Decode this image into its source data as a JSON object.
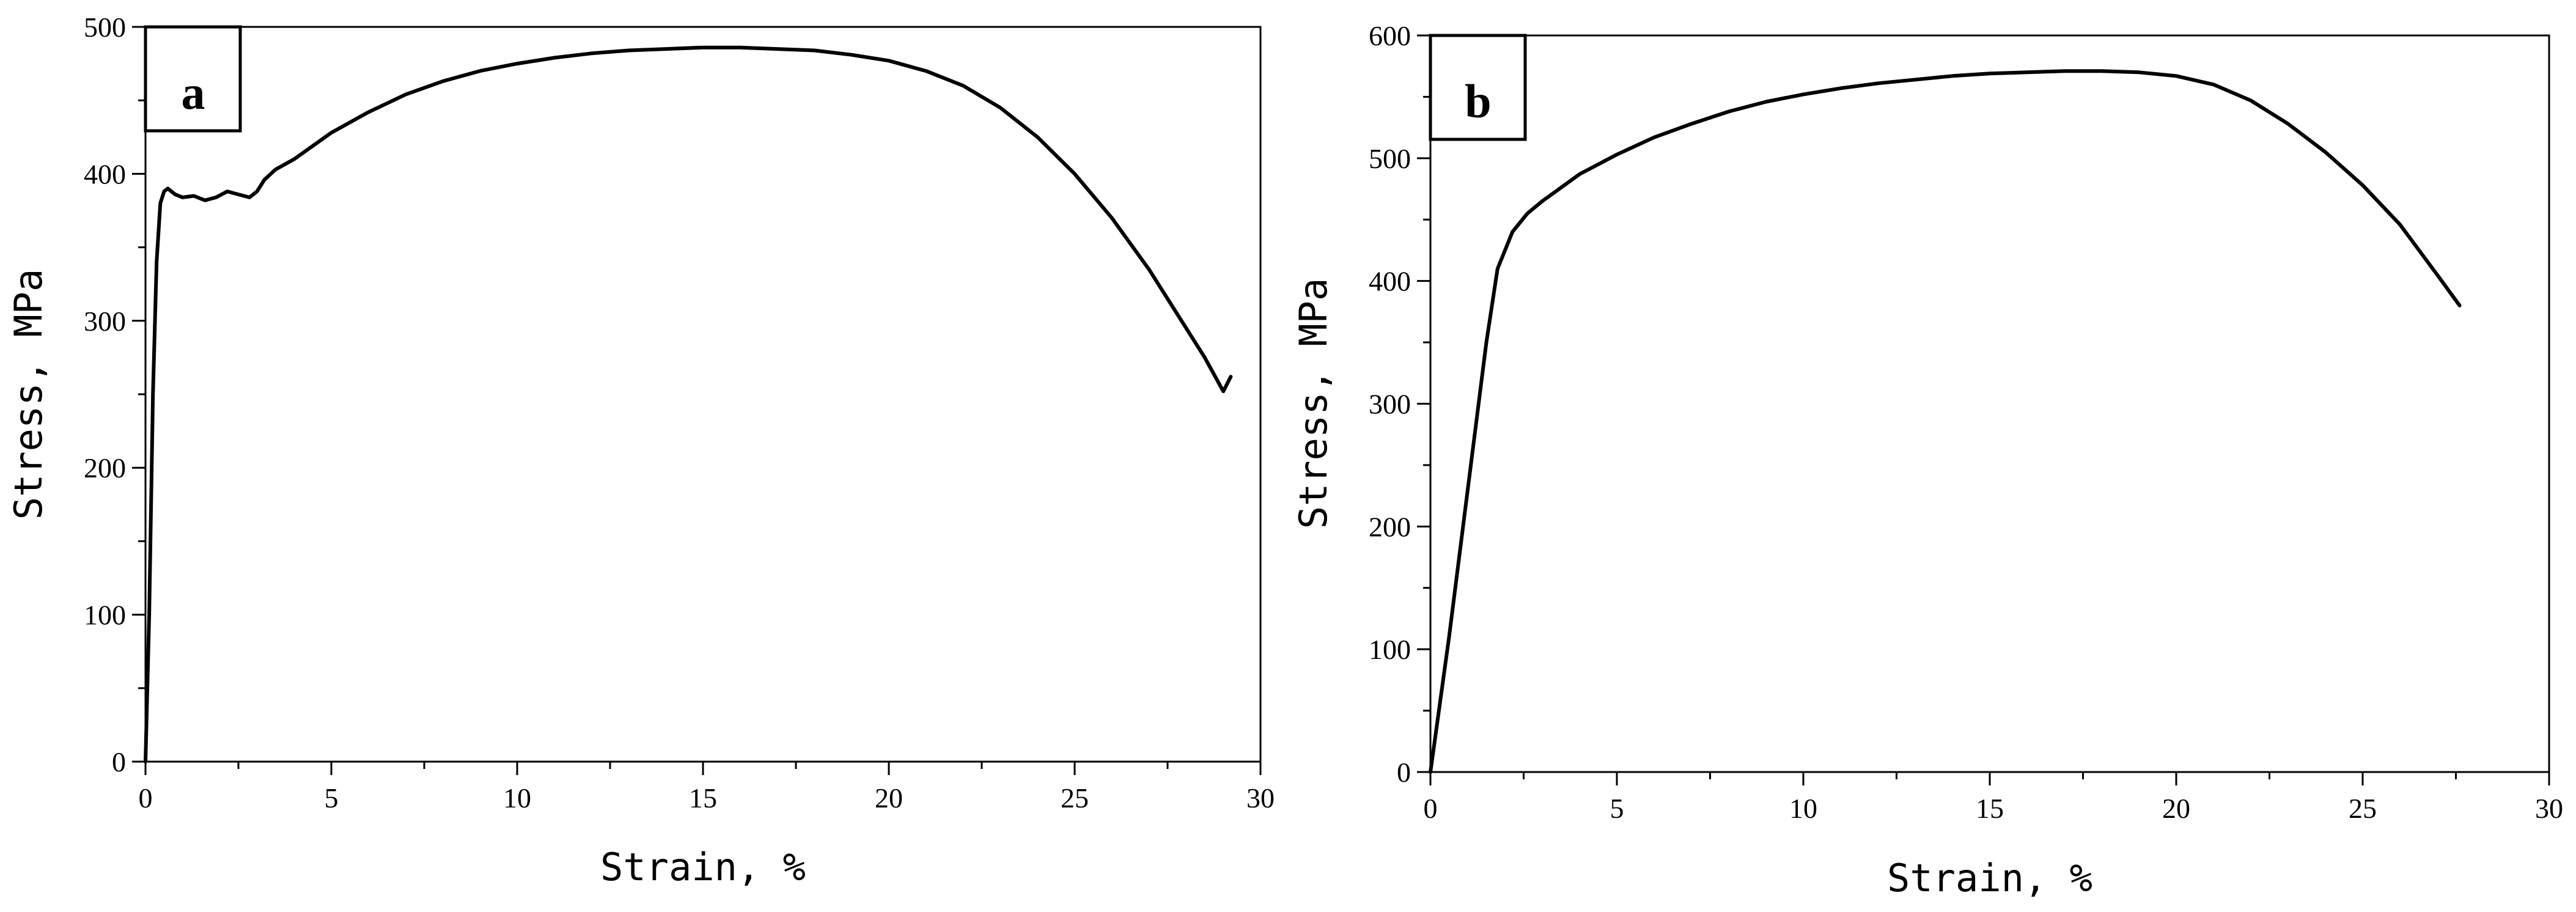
{
  "chart_data": [
    {
      "type": "line",
      "panel_label": "a",
      "xlabel": "Strain, %",
      "ylabel": "Stress, MPa",
      "xlim": [
        0,
        30
      ],
      "ylim": [
        0,
        500
      ],
      "x_ticks": [
        0,
        5,
        10,
        15,
        20,
        25,
        30
      ],
      "y_ticks": [
        0,
        100,
        200,
        300,
        400,
        500
      ],
      "grid": false,
      "legend": "none",
      "line_color": "#000000",
      "series": [
        {
          "x": [
            0,
            0.1,
            0.2,
            0.3,
            0.4,
            0.5,
            0.6,
            0.8,
            1.0,
            1.3,
            1.6,
            1.9,
            2.2,
            2.5,
            2.8,
            3.0,
            3.2,
            3.5,
            4,
            5,
            6,
            7,
            8,
            9,
            10,
            11,
            12,
            13,
            14,
            15,
            16,
            17,
            18,
            19,
            20,
            21,
            22,
            23,
            24,
            25,
            26,
            27,
            28,
            28.5,
            29,
            29.2
          ],
          "y": [
            0,
            100,
            250,
            340,
            380,
            388,
            390,
            386,
            384,
            385,
            382,
            384,
            388,
            386,
            384,
            388,
            396,
            403,
            410,
            428,
            442,
            454,
            463,
            470,
            475,
            479,
            482,
            484,
            485,
            486,
            486,
            485,
            484,
            481,
            477,
            470,
            460,
            445,
            425,
            400,
            370,
            335,
            295,
            275,
            252,
            262
          ]
        }
      ]
    },
    {
      "type": "line",
      "panel_label": "b",
      "xlabel": "Strain, %",
      "ylabel": "Stress, MPa",
      "xlim": [
        0,
        30
      ],
      "ylim": [
        0,
        600
      ],
      "x_ticks": [
        0,
        5,
        10,
        15,
        20,
        25,
        30
      ],
      "y_ticks": [
        0,
        100,
        200,
        300,
        400,
        500,
        600
      ],
      "grid": false,
      "legend": "none",
      "line_color": "#000000",
      "series": [
        {
          "x": [
            0,
            0.5,
            1.0,
            1.5,
            1.8,
            2.2,
            2.6,
            3,
            4,
            5,
            6,
            7,
            8,
            9,
            10,
            11,
            12,
            13,
            14,
            15,
            16,
            17,
            18,
            19,
            20,
            21,
            22,
            23,
            24,
            25,
            26,
            27,
            27.6
          ],
          "y": [
            0,
            110,
            230,
            350,
            410,
            440,
            455,
            465,
            487,
            503,
            517,
            528,
            538,
            546,
            552,
            557,
            561,
            564,
            567,
            569,
            570,
            571,
            571,
            570,
            567,
            560,
            547,
            528,
            505,
            478,
            446,
            405,
            380
          ]
        }
      ]
    }
  ]
}
